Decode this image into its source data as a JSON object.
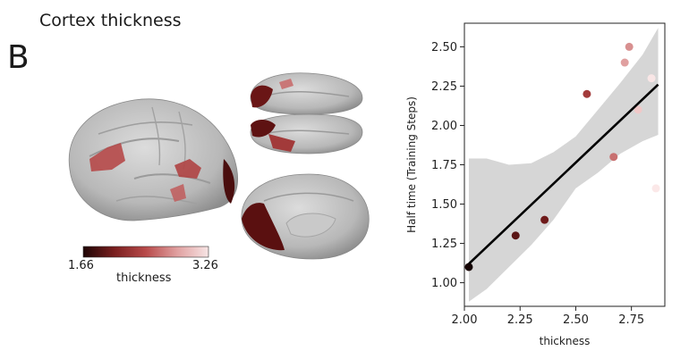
{
  "figure": {
    "title": "Cortex thickness",
    "panel_letter": "B"
  },
  "colorbar": {
    "min_label": "1.66",
    "max_label": "3.26",
    "label": "thickness",
    "colors": [
      "#1e0505",
      "#7a1f1f",
      "#b84a4a",
      "#e0a0a0",
      "#f7e5e5"
    ]
  },
  "chart_data": {
    "type": "scatter",
    "xlabel": "thickness",
    "ylabel": "Half time (Training Steps)",
    "xlim": [
      2.0,
      2.9
    ],
    "ylim": [
      0.85,
      2.65
    ],
    "xticks": [
      2.0,
      2.25,
      2.5,
      2.75
    ],
    "xtick_labels": [
      "2.00",
      "2.25",
      "2.50",
      "2.75"
    ],
    "yticks": [
      1.0,
      1.25,
      1.5,
      1.75,
      2.0,
      2.25,
      2.5
    ],
    "ytick_labels": [
      "1.00",
      "1.25",
      "1.50",
      "1.75",
      "2.00",
      "2.25",
      "2.50"
    ],
    "points": [
      {
        "x": 2.02,
        "y": 1.1,
        "color": "#140202"
      },
      {
        "x": 2.23,
        "y": 1.3,
        "color": "#5a1515"
      },
      {
        "x": 2.36,
        "y": 1.4,
        "color": "#6e1a1a"
      },
      {
        "x": 2.55,
        "y": 2.2,
        "color": "#a33b3b"
      },
      {
        "x": 2.67,
        "y": 1.8,
        "color": "#c87070"
      },
      {
        "x": 2.72,
        "y": 2.4,
        "color": "#e0a0a0"
      },
      {
        "x": 2.74,
        "y": 2.5,
        "color": "#d89090"
      },
      {
        "x": 2.78,
        "y": 2.1,
        "color": "#f0c8c8"
      },
      {
        "x": 2.84,
        "y": 2.3,
        "color": "#f9e6e6"
      },
      {
        "x": 2.86,
        "y": 1.6,
        "color": "#fbe8e8"
      }
    ],
    "fit_line": {
      "x": [
        2.02,
        2.87
      ],
      "y": [
        1.12,
        2.26
      ]
    },
    "confidence_band": {
      "x": [
        2.02,
        2.1,
        2.2,
        2.3,
        2.4,
        2.5,
        2.6,
        2.7,
        2.8,
        2.87
      ],
      "upper": [
        1.79,
        1.79,
        1.75,
        1.76,
        1.83,
        1.93,
        2.1,
        2.27,
        2.45,
        2.62
      ],
      "lower": [
        0.88,
        0.96,
        1.1,
        1.24,
        1.4,
        1.6,
        1.7,
        1.82,
        1.9,
        1.94
      ]
    }
  }
}
